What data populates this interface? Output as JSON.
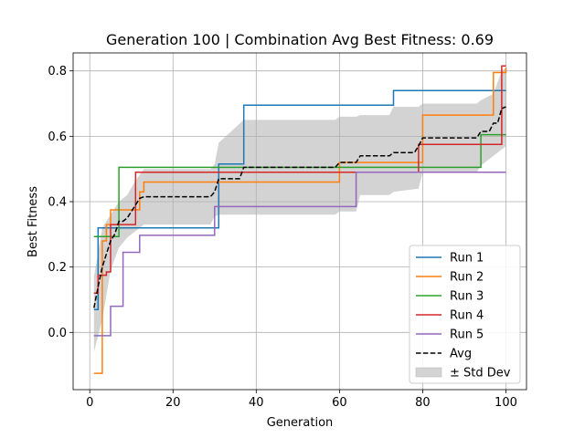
{
  "chart_data": {
    "type": "line",
    "title": "Generation 100 | Combination Avg Best Fitness: 0.69",
    "xlabel": "Generation",
    "ylabel": "Best Fitness",
    "xlim": [
      -4,
      104.95
    ],
    "ylim": [
      -0.175,
      0.855
    ],
    "xticks": [
      0,
      20,
      40,
      60,
      80,
      100
    ],
    "xtick_labels": [
      "0",
      "20",
      "40",
      "60",
      "80",
      "100"
    ],
    "yticks": [
      0.0,
      0.2,
      0.4,
      0.6,
      0.8
    ],
    "ytick_labels": [
      "0.0",
      "0.2",
      "0.4",
      "0.6",
      "0.8"
    ],
    "grid": true,
    "legend_position": "lower-right",
    "series": [
      {
        "name": "Run 1",
        "color": "#1f77b4",
        "style": "solid",
        "steps": [
          [
            1,
            0.07
          ],
          [
            2,
            0.32
          ],
          [
            31,
            0.515
          ],
          [
            37,
            0.695
          ],
          [
            73,
            0.74
          ],
          [
            100,
            0.74
          ]
        ]
      },
      {
        "name": "Run 2",
        "color": "#ff7f0e",
        "style": "solid",
        "steps": [
          [
            1,
            -0.125
          ],
          [
            3,
            0.28
          ],
          [
            4,
            0.33
          ],
          [
            5,
            0.375
          ],
          [
            11,
            0.375
          ],
          [
            12,
            0.43
          ],
          [
            13,
            0.46
          ],
          [
            60,
            0.52
          ],
          [
            80,
            0.665
          ],
          [
            97,
            0.795
          ],
          [
            100,
            0.81
          ]
        ]
      },
      {
        "name": "Run 3",
        "color": "#2ca02c",
        "style": "solid",
        "steps": [
          [
            1,
            0.293
          ],
          [
            5,
            0.293
          ],
          [
            7,
            0.505
          ],
          [
            94,
            0.605
          ],
          [
            100,
            0.605
          ]
        ]
      },
      {
        "name": "Run 4",
        "color": "#d62728",
        "style": "solid",
        "steps": [
          [
            1,
            0.12
          ],
          [
            2,
            0.175
          ],
          [
            4,
            0.185
          ],
          [
            5,
            0.33
          ],
          [
            11,
            0.49
          ],
          [
            79,
            0.575
          ],
          [
            99,
            0.815
          ],
          [
            100,
            0.815
          ]
        ]
      },
      {
        "name": "Run 5",
        "color": "#9467bd",
        "style": "solid",
        "steps": [
          [
            1,
            -0.01
          ],
          [
            5,
            0.08
          ],
          [
            8,
            0.245
          ],
          [
            12,
            0.297
          ],
          [
            30,
            0.385
          ],
          [
            64,
            0.49
          ],
          [
            100,
            0.49
          ]
        ]
      }
    ],
    "avg": {
      "name": "Avg",
      "color": "#000000",
      "style": "dashed",
      "points": [
        [
          1,
          0.075
        ],
        [
          2,
          0.14
        ],
        [
          3,
          0.2
        ],
        [
          4,
          0.24
        ],
        [
          5,
          0.28
        ],
        [
          6,
          0.3
        ],
        [
          7,
          0.34
        ],
        [
          8,
          0.34
        ],
        [
          9,
          0.35
        ],
        [
          10,
          0.37
        ],
        [
          11,
          0.39
        ],
        [
          12,
          0.41
        ],
        [
          13,
          0.415
        ],
        [
          29,
          0.415
        ],
        [
          30,
          0.43
        ],
        [
          31,
          0.47
        ],
        [
          36,
          0.47
        ],
        [
          37,
          0.505
        ],
        [
          59,
          0.505
        ],
        [
          60,
          0.52
        ],
        [
          64,
          0.52
        ],
        [
          65,
          0.54
        ],
        [
          72,
          0.54
        ],
        [
          73,
          0.55
        ],
        [
          78,
          0.55
        ],
        [
          79,
          0.57
        ],
        [
          80,
          0.595
        ],
        [
          93,
          0.595
        ],
        [
          94,
          0.615
        ],
        [
          96,
          0.615
        ],
        [
          97,
          0.64
        ],
        [
          98,
          0.64
        ],
        [
          99,
          0.685
        ],
        [
          100,
          0.69
        ]
      ]
    },
    "band": {
      "name": "± Std Dev",
      "color": "#d3d3d3",
      "upper": [
        [
          1,
          0.17
        ],
        [
          3,
          0.32
        ],
        [
          5,
          0.36
        ],
        [
          7,
          0.4
        ],
        [
          9,
          0.42
        ],
        [
          11,
          0.465
        ],
        [
          13,
          0.5
        ],
        [
          29,
          0.5
        ],
        [
          30,
          0.515
        ],
        [
          31,
          0.58
        ],
        [
          37,
          0.65
        ],
        [
          59,
          0.65
        ],
        [
          60,
          0.66
        ],
        [
          64,
          0.66
        ],
        [
          65,
          0.665
        ],
        [
          72,
          0.665
        ],
        [
          73,
          0.69
        ],
        [
          79,
          0.69
        ],
        [
          80,
          0.7
        ],
        [
          93,
          0.7
        ],
        [
          94,
          0.71
        ],
        [
          97,
          0.73
        ],
        [
          99,
          0.8
        ],
        [
          100,
          0.81
        ]
      ],
      "lower": [
        [
          1,
          -0.06
        ],
        [
          3,
          0.04
        ],
        [
          5,
          0.19
        ],
        [
          7,
          0.26
        ],
        [
          9,
          0.29
        ],
        [
          11,
          0.31
        ],
        [
          13,
          0.33
        ],
        [
          29,
          0.33
        ],
        [
          30,
          0.355
        ],
        [
          31,
          0.36
        ],
        [
          37,
          0.36
        ],
        [
          59,
          0.36
        ],
        [
          60,
          0.37
        ],
        [
          64,
          0.37
        ],
        [
          65,
          0.42
        ],
        [
          72,
          0.42
        ],
        [
          73,
          0.43
        ],
        [
          79,
          0.44
        ],
        [
          80,
          0.49
        ],
        [
          93,
          0.49
        ],
        [
          94,
          0.51
        ],
        [
          97,
          0.54
        ],
        [
          99,
          0.56
        ],
        [
          100,
          0.57
        ]
      ]
    },
    "legend_entries": [
      "Run 1",
      "Run 2",
      "Run 3",
      "Run 4",
      "Run 5",
      "Avg",
      "± Std Dev"
    ]
  }
}
